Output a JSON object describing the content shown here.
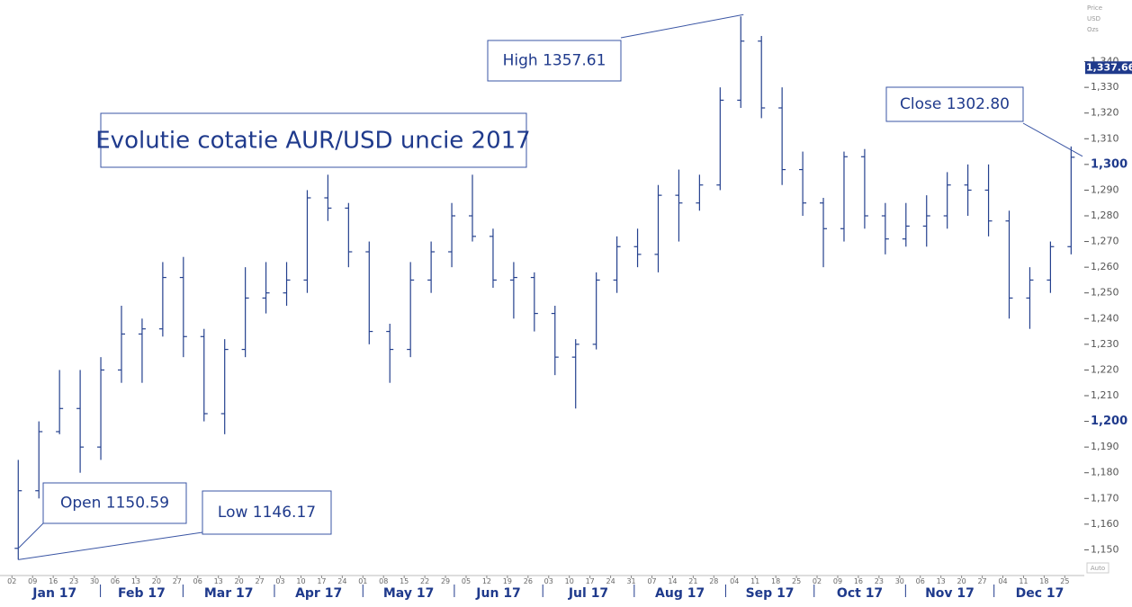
{
  "chart_data": {
    "type": "ohlc",
    "title": "Evolutie cotatie AUR/USD uncie 2017",
    "y_axis_label": [
      "Price",
      "USD",
      "Ozs"
    ],
    "auto_button": "Auto",
    "color": "#24408e",
    "x": [
      "2017-01-02",
      "2017-01-09",
      "2017-01-16",
      "2017-01-23",
      "2017-01-30",
      "2017-02-06",
      "2017-02-13",
      "2017-02-20",
      "2017-02-27",
      "2017-03-06",
      "2017-03-13",
      "2017-03-20",
      "2017-03-27",
      "2017-04-03",
      "2017-04-10",
      "2017-04-17",
      "2017-04-24",
      "2017-05-01",
      "2017-05-08",
      "2017-05-15",
      "2017-05-22",
      "2017-05-29",
      "2017-06-05",
      "2017-06-12",
      "2017-06-19",
      "2017-06-26",
      "2017-07-03",
      "2017-07-10",
      "2017-07-17",
      "2017-07-24",
      "2017-07-31",
      "2017-08-07",
      "2017-08-14",
      "2017-08-21",
      "2017-08-28",
      "2017-09-04",
      "2017-09-11",
      "2017-09-18",
      "2017-09-25",
      "2017-10-02",
      "2017-10-09",
      "2017-10-16",
      "2017-10-23",
      "2017-10-30",
      "2017-11-06",
      "2017-11-13",
      "2017-11-20",
      "2017-11-27",
      "2017-12-04",
      "2017-12-11",
      "2017-12-18",
      "2017-12-25"
    ],
    "open": [
      1150.59,
      1173,
      1196,
      1205,
      1190,
      1220,
      1234,
      1236,
      1256,
      1233,
      1203,
      1228,
      1248,
      1250,
      1255,
      1287,
      1283,
      1266,
      1235,
      1228,
      1255,
      1266,
      1280,
      1272,
      1255,
      1256,
      1242,
      1225,
      1230,
      1255,
      1268,
      1265,
      1288,
      1285,
      1292,
      1325,
      1348,
      1322,
      1298,
      1285,
      1275,
      1303,
      1280,
      1271,
      1276,
      1280,
      1292,
      1290,
      1278,
      1248,
      1255,
      1268
    ],
    "high": [
      1185,
      1200,
      1220,
      1220,
      1225,
      1245,
      1240,
      1262,
      1264,
      1236,
      1232,
      1260,
      1262,
      1262,
      1290,
      1296,
      1285,
      1270,
      1238,
      1262,
      1270,
      1285,
      1296,
      1275,
      1262,
      1258,
      1245,
      1232,
      1258,
      1272,
      1275,
      1292,
      1298,
      1296,
      1330,
      1357.61,
      1350,
      1330,
      1305,
      1287,
      1305,
      1306,
      1285,
      1285,
      1288,
      1297,
      1300,
      1300,
      1282,
      1260,
      1270,
      1307
    ],
    "low": [
      1146.17,
      1170,
      1195,
      1180,
      1185,
      1215,
      1215,
      1233,
      1225,
      1200,
      1195,
      1225,
      1242,
      1245,
      1250,
      1278,
      1260,
      1230,
      1215,
      1225,
      1250,
      1260,
      1270,
      1252,
      1240,
      1235,
      1218,
      1205,
      1228,
      1250,
      1260,
      1258,
      1270,
      1282,
      1290,
      1322,
      1318,
      1292,
      1280,
      1260,
      1270,
      1275,
      1265,
      1268,
      1268,
      1275,
      1280,
      1272,
      1240,
      1236,
      1250,
      1265
    ],
    "close": [
      1173,
      1196,
      1205,
      1190,
      1220,
      1234,
      1236,
      1256,
      1233,
      1203,
      1228,
      1248,
      1250,
      1255,
      1287,
      1283,
      1266,
      1235,
      1228,
      1255,
      1266,
      1280,
      1272,
      1255,
      1256,
      1242,
      1225,
      1230,
      1255,
      1268,
      1265,
      1288,
      1285,
      1292,
      1325,
      1348,
      1322,
      1298,
      1285,
      1275,
      1303,
      1280,
      1271,
      1276,
      1280,
      1292,
      1290,
      1278,
      1248,
      1255,
      1268,
      1302.8
    ],
    "xlim": [
      "2017-01-01",
      "2017-12-31"
    ],
    "xticks": [
      {
        "value": "2017-01-02",
        "label": "02"
      },
      {
        "value": "2017-01-09",
        "label": "09"
      },
      {
        "value": "2017-01-16",
        "label": "16"
      },
      {
        "value": "2017-01-23",
        "label": "23"
      },
      {
        "value": "2017-01-30",
        "label": "30"
      },
      {
        "value": "2017-02-06",
        "label": "06"
      },
      {
        "value": "2017-02-13",
        "label": "13"
      },
      {
        "value": "2017-02-20",
        "label": "20"
      },
      {
        "value": "2017-02-27",
        "label": "27"
      },
      {
        "value": "2017-03-06",
        "label": "06"
      },
      {
        "value": "2017-03-13",
        "label": "13"
      },
      {
        "value": "2017-03-20",
        "label": "20"
      },
      {
        "value": "2017-03-27",
        "label": "27"
      },
      {
        "value": "2017-04-03",
        "label": "03"
      },
      {
        "value": "2017-04-10",
        "label": "10"
      },
      {
        "value": "2017-04-17",
        "label": "17"
      },
      {
        "value": "2017-04-24",
        "label": "24"
      },
      {
        "value": "2017-05-01",
        "label": "01"
      },
      {
        "value": "2017-05-08",
        "label": "08"
      },
      {
        "value": "2017-05-15",
        "label": "15"
      },
      {
        "value": "2017-05-22",
        "label": "22"
      },
      {
        "value": "2017-05-29",
        "label": "29"
      },
      {
        "value": "2017-06-05",
        "label": "05"
      },
      {
        "value": "2017-06-12",
        "label": "12"
      },
      {
        "value": "2017-06-19",
        "label": "19"
      },
      {
        "value": "2017-06-26",
        "label": "26"
      },
      {
        "value": "2017-07-03",
        "label": "03"
      },
      {
        "value": "2017-07-10",
        "label": "10"
      },
      {
        "value": "2017-07-17",
        "label": "17"
      },
      {
        "value": "2017-07-24",
        "label": "24"
      },
      {
        "value": "2017-07-31",
        "label": "31"
      },
      {
        "value": "2017-08-07",
        "label": "07"
      },
      {
        "value": "2017-08-14",
        "label": "14"
      },
      {
        "value": "2017-08-21",
        "label": "21"
      },
      {
        "value": "2017-08-28",
        "label": "28"
      },
      {
        "value": "2017-09-04",
        "label": "04"
      },
      {
        "value": "2017-09-11",
        "label": "11"
      },
      {
        "value": "2017-09-18",
        "label": "18"
      },
      {
        "value": "2017-09-25",
        "label": "25"
      },
      {
        "value": "2017-10-02",
        "label": "02"
      },
      {
        "value": "2017-10-09",
        "label": "09"
      },
      {
        "value": "2017-10-16",
        "label": "16"
      },
      {
        "value": "2017-10-23",
        "label": "23"
      },
      {
        "value": "2017-10-30",
        "label": "30"
      },
      {
        "value": "2017-11-06",
        "label": "06"
      },
      {
        "value": "2017-11-13",
        "label": "13"
      },
      {
        "value": "2017-11-20",
        "label": "20"
      },
      {
        "value": "2017-11-27",
        "label": "27"
      },
      {
        "value": "2017-12-04",
        "label": "04"
      },
      {
        "value": "2017-12-11",
        "label": "11"
      },
      {
        "value": "2017-12-18",
        "label": "18"
      },
      {
        "value": "2017-12-25",
        "label": "25"
      }
    ],
    "months": [
      {
        "value": "2017-01",
        "label": "Jan 17"
      },
      {
        "value": "2017-02",
        "label": "Feb 17"
      },
      {
        "value": "2017-03",
        "label": "Mar 17"
      },
      {
        "value": "2017-04",
        "label": "Apr 17"
      },
      {
        "value": "2017-05",
        "label": "May 17"
      },
      {
        "value": "2017-06",
        "label": "Jun 17"
      },
      {
        "value": "2017-07",
        "label": "Jul 17"
      },
      {
        "value": "2017-08",
        "label": "Aug 17"
      },
      {
        "value": "2017-09",
        "label": "Sep 17"
      },
      {
        "value": "2017-10",
        "label": "Oct 17"
      },
      {
        "value": "2017-11",
        "label": "Nov 17"
      },
      {
        "value": "2017-12",
        "label": "Dec 17"
      }
    ],
    "ylim": [
      1140,
      1364
    ],
    "yticks": [
      {
        "value": 1150,
        "label": "1,150"
      },
      {
        "value": 1160,
        "label": "1,160"
      },
      {
        "value": 1170,
        "label": "1,170"
      },
      {
        "value": 1180,
        "label": "1,180"
      },
      {
        "value": 1190,
        "label": "1,190"
      },
      {
        "value": 1200,
        "label": "1,200"
      },
      {
        "value": 1210,
        "label": "1,210"
      },
      {
        "value": 1220,
        "label": "1,220"
      },
      {
        "value": 1230,
        "label": "1,230"
      },
      {
        "value": 1240,
        "label": "1,240"
      },
      {
        "value": 1250,
        "label": "1,250"
      },
      {
        "value": 1260,
        "label": "1,260"
      },
      {
        "value": 1270,
        "label": "1,270"
      },
      {
        "value": 1280,
        "label": "1,280"
      },
      {
        "value": 1290,
        "label": "1,290"
      },
      {
        "value": 1300,
        "label": "1,300"
      },
      {
        "value": 1310,
        "label": "1,310"
      },
      {
        "value": 1320,
        "label": "1,320"
      },
      {
        "value": 1330,
        "label": "1,330"
      },
      {
        "value": 1340,
        "label": "1,340"
      }
    ],
    "last_price": {
      "value": 1337.66,
      "label": "1,337.66"
    },
    "annotations": {
      "open": "Open 1150.59",
      "low": "Low 1146.17",
      "high": "High 1357.61",
      "close": "Close 1302.80"
    }
  }
}
